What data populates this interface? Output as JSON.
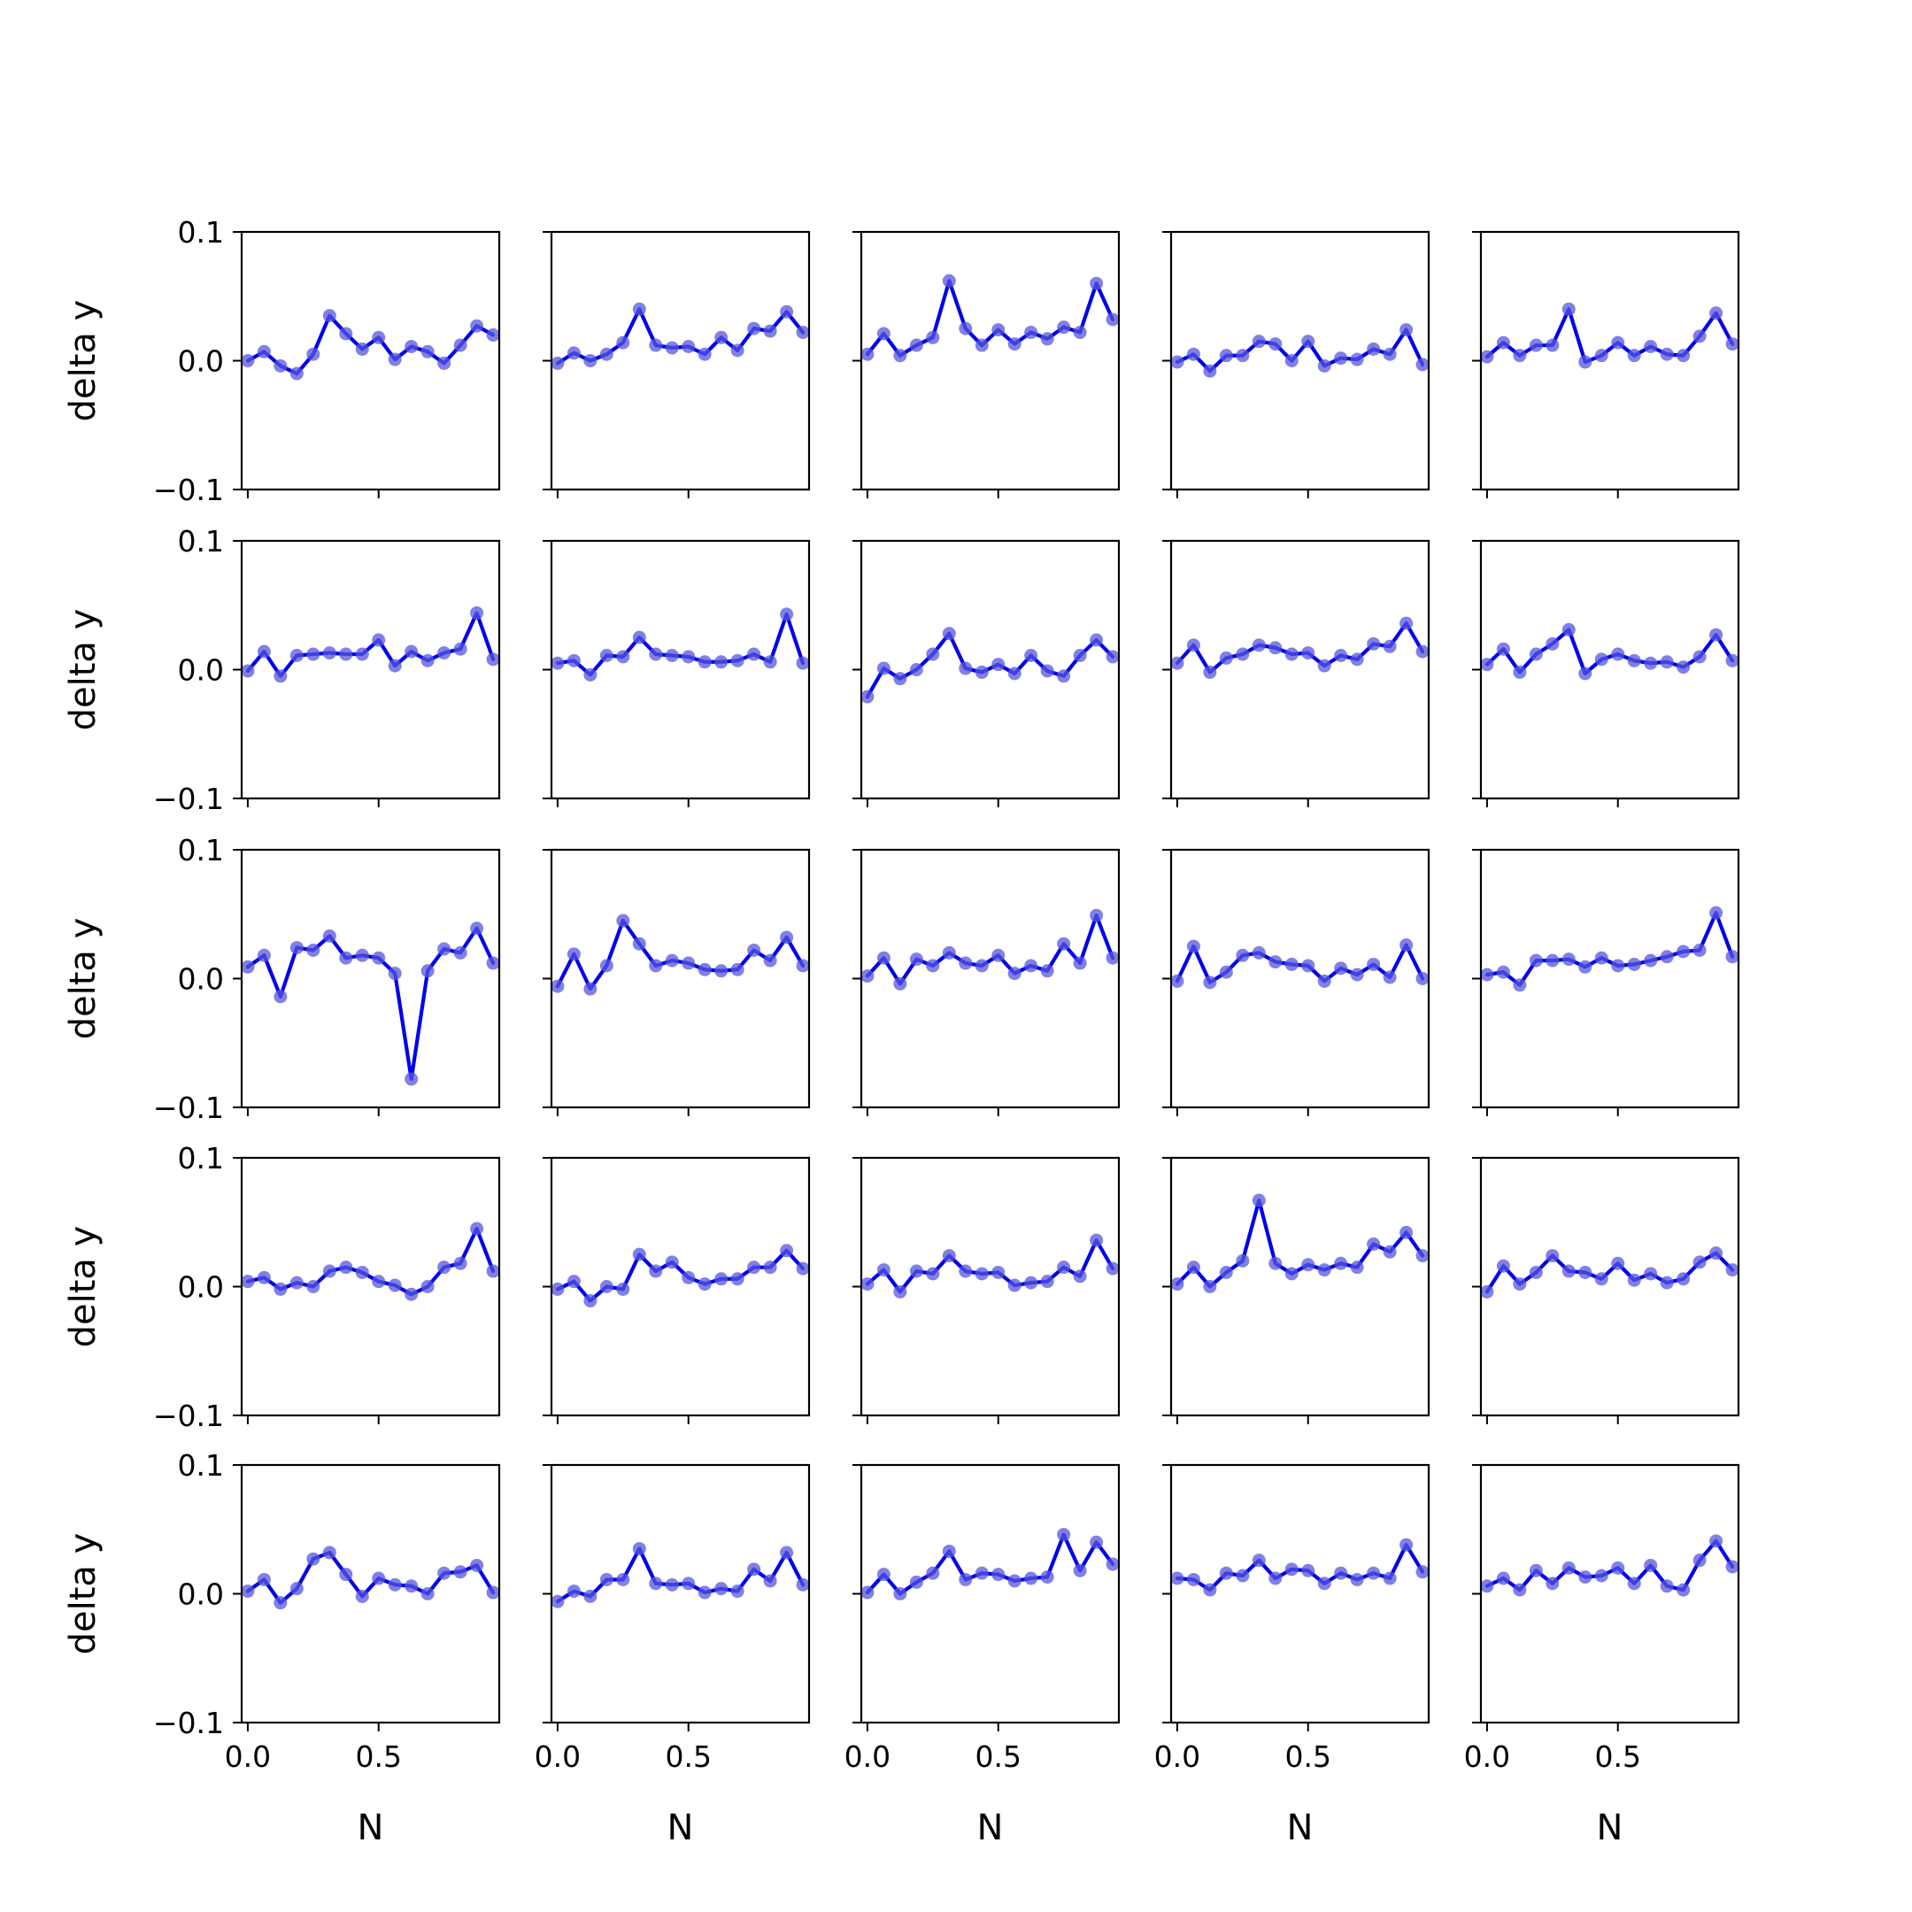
{
  "figure": {
    "series_color": "#0000ee",
    "marker_color": "#5555dd"
  },
  "chart_data": {
    "type": "line",
    "layout": "5x5 grid of subplots, shared axes",
    "xlabel": "N",
    "ylabel": "delta y",
    "xlim": [
      -0.0234,
      0.9609
    ],
    "ylim": [
      -0.1,
      0.1
    ],
    "xticks": [
      "0.0",
      "0.5"
    ],
    "yticks": [
      "−0.1",
      "0.0",
      "0.1"
    ],
    "x": [
      0.0,
      0.0625,
      0.125,
      0.1875,
      0.25,
      0.3125,
      0.375,
      0.4375,
      0.5,
      0.5625,
      0.625,
      0.6875,
      0.75,
      0.8125,
      0.875,
      0.9375
    ],
    "grid": false,
    "panels": [
      {
        "row": 1,
        "col": 1,
        "values": [
          0.0,
          0.007,
          -0.004,
          -0.01,
          0.005,
          0.035,
          0.021,
          0.009,
          0.018,
          0.001,
          0.011,
          0.007,
          -0.002,
          0.012,
          0.027,
          0.02
        ]
      },
      {
        "row": 1,
        "col": 2,
        "values": [
          -0.002,
          0.006,
          0.0,
          0.005,
          0.014,
          0.04,
          0.012,
          0.01,
          0.011,
          0.005,
          0.018,
          0.008,
          0.025,
          0.023,
          0.038,
          0.022
        ]
      },
      {
        "row": 1,
        "col": 3,
        "values": [
          0.005,
          0.021,
          0.004,
          0.012,
          0.018,
          0.062,
          0.025,
          0.012,
          0.024,
          0.013,
          0.022,
          0.017,
          0.026,
          0.022,
          0.06,
          0.032
        ]
      },
      {
        "row": 1,
        "col": 4,
        "values": [
          -0.001,
          0.005,
          -0.008,
          0.004,
          0.004,
          0.015,
          0.013,
          0.0,
          0.015,
          -0.004,
          0.002,
          0.001,
          0.009,
          0.005,
          0.024,
          -0.003
        ]
      },
      {
        "row": 1,
        "col": 5,
        "values": [
          0.003,
          0.014,
          0.004,
          0.012,
          0.012,
          0.04,
          -0.001,
          0.004,
          0.014,
          0.004,
          0.011,
          0.005,
          0.004,
          0.019,
          0.037,
          0.013
        ]
      },
      {
        "row": 2,
        "col": 1,
        "values": [
          -0.001,
          0.014,
          -0.005,
          0.011,
          0.012,
          0.013,
          0.012,
          0.012,
          0.023,
          0.003,
          0.014,
          0.007,
          0.013,
          0.016,
          0.044,
          0.008
        ]
      },
      {
        "row": 2,
        "col": 2,
        "values": [
          0.005,
          0.007,
          -0.004,
          0.011,
          0.01,
          0.025,
          0.012,
          0.011,
          0.01,
          0.006,
          0.006,
          0.007,
          0.012,
          0.006,
          0.043,
          0.005
        ]
      },
      {
        "row": 2,
        "col": 3,
        "values": [
          -0.021,
          0.001,
          -0.007,
          0.0,
          0.012,
          0.028,
          0.001,
          -0.002,
          0.004,
          -0.003,
          0.011,
          -0.001,
          -0.005,
          0.011,
          0.023,
          0.01
        ]
      },
      {
        "row": 2,
        "col": 4,
        "values": [
          0.005,
          0.019,
          -0.002,
          0.009,
          0.012,
          0.019,
          0.017,
          0.012,
          0.013,
          0.003,
          0.011,
          0.008,
          0.02,
          0.018,
          0.036,
          0.014
        ]
      },
      {
        "row": 2,
        "col": 5,
        "values": [
          0.004,
          0.016,
          -0.002,
          0.012,
          0.02,
          0.031,
          -0.003,
          0.008,
          0.012,
          0.007,
          0.005,
          0.006,
          0.002,
          0.01,
          0.027,
          0.007
        ]
      },
      {
        "row": 3,
        "col": 1,
        "values": [
          0.009,
          0.018,
          -0.014,
          0.024,
          0.022,
          0.033,
          0.016,
          0.018,
          0.016,
          0.004,
          -0.078,
          0.006,
          0.023,
          0.02,
          0.039,
          0.012
        ]
      },
      {
        "row": 3,
        "col": 2,
        "values": [
          -0.006,
          0.019,
          -0.008,
          0.01,
          0.045,
          0.027,
          0.01,
          0.014,
          0.012,
          0.007,
          0.006,
          0.007,
          0.022,
          0.014,
          0.032,
          0.01
        ]
      },
      {
        "row": 3,
        "col": 3,
        "values": [
          0.002,
          0.016,
          -0.004,
          0.015,
          0.01,
          0.02,
          0.012,
          0.01,
          0.018,
          0.004,
          0.01,
          0.006,
          0.027,
          0.012,
          0.049,
          0.016
        ]
      },
      {
        "row": 3,
        "col": 4,
        "values": [
          -0.002,
          0.025,
          -0.003,
          0.005,
          0.018,
          0.02,
          0.013,
          0.011,
          0.01,
          -0.002,
          0.008,
          0.003,
          0.011,
          0.001,
          0.026,
          0.0
        ]
      },
      {
        "row": 3,
        "col": 5,
        "values": [
          0.003,
          0.005,
          -0.005,
          0.014,
          0.014,
          0.015,
          0.009,
          0.016,
          0.01,
          0.011,
          0.014,
          0.017,
          0.021,
          0.022,
          0.051,
          0.017
        ]
      },
      {
        "row": 4,
        "col": 1,
        "values": [
          0.004,
          0.007,
          -0.002,
          0.003,
          0.0,
          0.012,
          0.015,
          0.011,
          0.004,
          0.001,
          -0.006,
          0.0,
          0.015,
          0.018,
          0.045,
          0.012
        ]
      },
      {
        "row": 4,
        "col": 2,
        "values": [
          -0.002,
          0.004,
          -0.011,
          0.0,
          -0.002,
          0.025,
          0.012,
          0.019,
          0.007,
          0.002,
          0.006,
          0.006,
          0.015,
          0.015,
          0.028,
          0.014
        ]
      },
      {
        "row": 4,
        "col": 3,
        "values": [
          0.002,
          0.013,
          -0.004,
          0.012,
          0.01,
          0.024,
          0.012,
          0.01,
          0.011,
          0.001,
          0.003,
          0.004,
          0.015,
          0.008,
          0.036,
          0.014
        ]
      },
      {
        "row": 4,
        "col": 4,
        "values": [
          0.002,
          0.015,
          0.0,
          0.011,
          0.02,
          0.067,
          0.018,
          0.01,
          0.017,
          0.013,
          0.018,
          0.015,
          0.033,
          0.027,
          0.042,
          0.024
        ]
      },
      {
        "row": 4,
        "col": 5,
        "values": [
          -0.004,
          0.016,
          0.002,
          0.011,
          0.024,
          0.012,
          0.011,
          0.006,
          0.018,
          0.005,
          0.01,
          0.003,
          0.006,
          0.019,
          0.026,
          0.013
        ]
      },
      {
        "row": 5,
        "col": 1,
        "values": [
          0.002,
          0.011,
          -0.007,
          0.004,
          0.027,
          0.032,
          0.015,
          -0.002,
          0.012,
          0.007,
          0.006,
          0.0,
          0.016,
          0.017,
          0.022,
          0.001
        ]
      },
      {
        "row": 5,
        "col": 2,
        "values": [
          -0.006,
          0.002,
          -0.002,
          0.011,
          0.011,
          0.035,
          0.008,
          0.007,
          0.008,
          0.001,
          0.004,
          0.002,
          0.019,
          0.01,
          0.032,
          0.007
        ]
      },
      {
        "row": 5,
        "col": 3,
        "values": [
          0.001,
          0.015,
          0.0,
          0.009,
          0.016,
          0.033,
          0.011,
          0.016,
          0.015,
          0.01,
          0.012,
          0.013,
          0.046,
          0.018,
          0.04,
          0.023
        ]
      },
      {
        "row": 5,
        "col": 4,
        "values": [
          0.012,
          0.011,
          0.003,
          0.016,
          0.014,
          0.026,
          0.012,
          0.019,
          0.018,
          0.008,
          0.016,
          0.011,
          0.016,
          0.012,
          0.038,
          0.017
        ]
      },
      {
        "row": 5,
        "col": 5,
        "values": [
          0.006,
          0.012,
          0.003,
          0.018,
          0.008,
          0.02,
          0.013,
          0.014,
          0.02,
          0.008,
          0.022,
          0.006,
          0.003,
          0.026,
          0.041,
          0.021
        ]
      }
    ]
  }
}
